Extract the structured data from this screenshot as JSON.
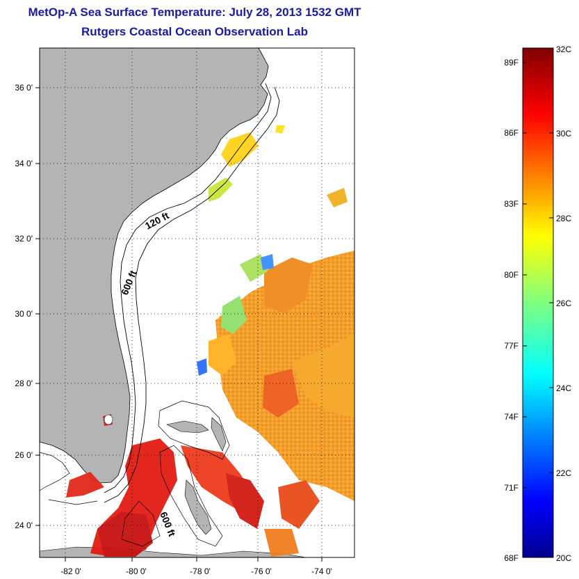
{
  "title": "MetOp-A Sea Surface Temperature:  July 28, 2013 1532 GMT",
  "subtitle": "Rutgers Coastal Ocean Observation Lab",
  "map": {
    "lat_labels": [
      "36 0'",
      "34 0'",
      "32 0'",
      "30 0'",
      "28 0'",
      "26 0'",
      "24 0'"
    ],
    "lon_labels": [
      "-82 0'",
      "-80 0'",
      "-78 0'",
      "-76 0'",
      "-74 0'"
    ],
    "contour_labels": [
      "120 ft",
      "600 ft",
      "600 ft"
    ],
    "land_color": "#b4b4b4"
  },
  "colorbar": {
    "fahrenheit_labels": [
      "89F",
      "86F",
      "83F",
      "80F",
      "77F",
      "74F",
      "71F",
      "68F"
    ],
    "celsius_labels": [
      "32C",
      "30C",
      "28C",
      "26C",
      "24C",
      "22C",
      "20C"
    ],
    "colormap": "jet"
  }
}
